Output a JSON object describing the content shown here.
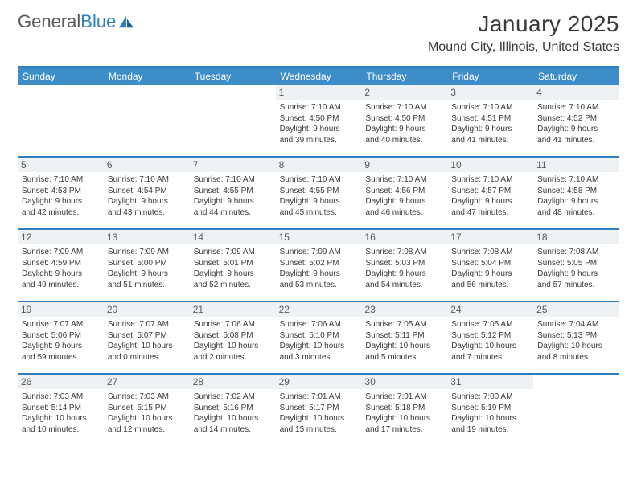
{
  "logo": {
    "word1": "General",
    "word2": "Blue"
  },
  "title": "January 2025",
  "location": "Mound City, Illinois, United States",
  "colors": {
    "header_bg": "#3d8dc9",
    "accent": "#2f7fc0",
    "daynum_bg": "#eef2f5",
    "text": "#3a3a3a"
  },
  "day_headers": [
    "Sunday",
    "Monday",
    "Tuesday",
    "Wednesday",
    "Thursday",
    "Friday",
    "Saturday"
  ],
  "weeks": [
    [
      {
        "day": "",
        "lines": []
      },
      {
        "day": "",
        "lines": []
      },
      {
        "day": "",
        "lines": []
      },
      {
        "day": "1",
        "lines": [
          "Sunrise: 7:10 AM",
          "Sunset: 4:50 PM",
          "Daylight: 9 hours",
          "and 39 minutes."
        ]
      },
      {
        "day": "2",
        "lines": [
          "Sunrise: 7:10 AM",
          "Sunset: 4:50 PM",
          "Daylight: 9 hours",
          "and 40 minutes."
        ]
      },
      {
        "day": "3",
        "lines": [
          "Sunrise: 7:10 AM",
          "Sunset: 4:51 PM",
          "Daylight: 9 hours",
          "and 41 minutes."
        ]
      },
      {
        "day": "4",
        "lines": [
          "Sunrise: 7:10 AM",
          "Sunset: 4:52 PM",
          "Daylight: 9 hours",
          "and 41 minutes."
        ]
      }
    ],
    [
      {
        "day": "5",
        "lines": [
          "Sunrise: 7:10 AM",
          "Sunset: 4:53 PM",
          "Daylight: 9 hours",
          "and 42 minutes."
        ]
      },
      {
        "day": "6",
        "lines": [
          "Sunrise: 7:10 AM",
          "Sunset: 4:54 PM",
          "Daylight: 9 hours",
          "and 43 minutes."
        ]
      },
      {
        "day": "7",
        "lines": [
          "Sunrise: 7:10 AM",
          "Sunset: 4:55 PM",
          "Daylight: 9 hours",
          "and 44 minutes."
        ]
      },
      {
        "day": "8",
        "lines": [
          "Sunrise: 7:10 AM",
          "Sunset: 4:55 PM",
          "Daylight: 9 hours",
          "and 45 minutes."
        ]
      },
      {
        "day": "9",
        "lines": [
          "Sunrise: 7:10 AM",
          "Sunset: 4:56 PM",
          "Daylight: 9 hours",
          "and 46 minutes."
        ]
      },
      {
        "day": "10",
        "lines": [
          "Sunrise: 7:10 AM",
          "Sunset: 4:57 PM",
          "Daylight: 9 hours",
          "and 47 minutes."
        ]
      },
      {
        "day": "11",
        "lines": [
          "Sunrise: 7:10 AM",
          "Sunset: 4:58 PM",
          "Daylight: 9 hours",
          "and 48 minutes."
        ]
      }
    ],
    [
      {
        "day": "12",
        "lines": [
          "Sunrise: 7:09 AM",
          "Sunset: 4:59 PM",
          "Daylight: 9 hours",
          "and 49 minutes."
        ]
      },
      {
        "day": "13",
        "lines": [
          "Sunrise: 7:09 AM",
          "Sunset: 5:00 PM",
          "Daylight: 9 hours",
          "and 51 minutes."
        ]
      },
      {
        "day": "14",
        "lines": [
          "Sunrise: 7:09 AM",
          "Sunset: 5:01 PM",
          "Daylight: 9 hours",
          "and 52 minutes."
        ]
      },
      {
        "day": "15",
        "lines": [
          "Sunrise: 7:09 AM",
          "Sunset: 5:02 PM",
          "Daylight: 9 hours",
          "and 53 minutes."
        ]
      },
      {
        "day": "16",
        "lines": [
          "Sunrise: 7:08 AM",
          "Sunset: 5:03 PM",
          "Daylight: 9 hours",
          "and 54 minutes."
        ]
      },
      {
        "day": "17",
        "lines": [
          "Sunrise: 7:08 AM",
          "Sunset: 5:04 PM",
          "Daylight: 9 hours",
          "and 56 minutes."
        ]
      },
      {
        "day": "18",
        "lines": [
          "Sunrise: 7:08 AM",
          "Sunset: 5:05 PM",
          "Daylight: 9 hours",
          "and 57 minutes."
        ]
      }
    ],
    [
      {
        "day": "19",
        "lines": [
          "Sunrise: 7:07 AM",
          "Sunset: 5:06 PM",
          "Daylight: 9 hours",
          "and 59 minutes."
        ]
      },
      {
        "day": "20",
        "lines": [
          "Sunrise: 7:07 AM",
          "Sunset: 5:07 PM",
          "Daylight: 10 hours",
          "and 0 minutes."
        ]
      },
      {
        "day": "21",
        "lines": [
          "Sunrise: 7:06 AM",
          "Sunset: 5:08 PM",
          "Daylight: 10 hours",
          "and 2 minutes."
        ]
      },
      {
        "day": "22",
        "lines": [
          "Sunrise: 7:06 AM",
          "Sunset: 5:10 PM",
          "Daylight: 10 hours",
          "and 3 minutes."
        ]
      },
      {
        "day": "23",
        "lines": [
          "Sunrise: 7:05 AM",
          "Sunset: 5:11 PM",
          "Daylight: 10 hours",
          "and 5 minutes."
        ]
      },
      {
        "day": "24",
        "lines": [
          "Sunrise: 7:05 AM",
          "Sunset: 5:12 PM",
          "Daylight: 10 hours",
          "and 7 minutes."
        ]
      },
      {
        "day": "25",
        "lines": [
          "Sunrise: 7:04 AM",
          "Sunset: 5:13 PM",
          "Daylight: 10 hours",
          "and 8 minutes."
        ]
      }
    ],
    [
      {
        "day": "26",
        "lines": [
          "Sunrise: 7:03 AM",
          "Sunset: 5:14 PM",
          "Daylight: 10 hours",
          "and 10 minutes."
        ]
      },
      {
        "day": "27",
        "lines": [
          "Sunrise: 7:03 AM",
          "Sunset: 5:15 PM",
          "Daylight: 10 hours",
          "and 12 minutes."
        ]
      },
      {
        "day": "28",
        "lines": [
          "Sunrise: 7:02 AM",
          "Sunset: 5:16 PM",
          "Daylight: 10 hours",
          "and 14 minutes."
        ]
      },
      {
        "day": "29",
        "lines": [
          "Sunrise: 7:01 AM",
          "Sunset: 5:17 PM",
          "Daylight: 10 hours",
          "and 15 minutes."
        ]
      },
      {
        "day": "30",
        "lines": [
          "Sunrise: 7:01 AM",
          "Sunset: 5:18 PM",
          "Daylight: 10 hours",
          "and 17 minutes."
        ]
      },
      {
        "day": "31",
        "lines": [
          "Sunrise: 7:00 AM",
          "Sunset: 5:19 PM",
          "Daylight: 10 hours",
          "and 19 minutes."
        ]
      },
      {
        "day": "",
        "lines": []
      }
    ]
  ]
}
